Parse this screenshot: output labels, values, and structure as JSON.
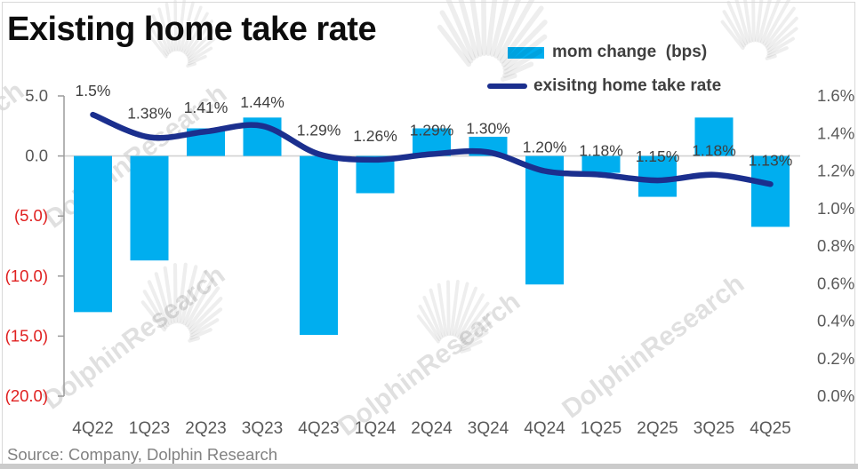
{
  "title": "Existing home take rate",
  "legend": {
    "bar": {
      "label": "mom change  (bps)",
      "color": "#00aeef"
    },
    "line": {
      "label": "exisitng home take rate",
      "color": "#1b2f8e"
    }
  },
  "source": "Source: Company, Dolphin Research",
  "watermark": {
    "text": "DolphinResearch"
  },
  "colors": {
    "bar": "#00aeef",
    "line": "#1b2f8e",
    "axis_text": "#595959",
    "negative_text": "#e02020",
    "data_label": "#3f3f3f",
    "axis_line": "#9b9b9b",
    "zero_gridline": "#d2d2d2"
  },
  "chart_data": {
    "type": "bar",
    "subtype": "combo bar + smooth line, dual axis",
    "title": "Existing home take rate",
    "categories": [
      "4Q22",
      "1Q23",
      "2Q23",
      "3Q23",
      "4Q23",
      "1Q24",
      "2Q24",
      "3Q24",
      "4Q24",
      "1Q25",
      "2Q25",
      "3Q25",
      "4Q25"
    ],
    "series": [
      {
        "name": "mom change  (bps)",
        "type": "bar",
        "axis": "left",
        "color": "#00aeef",
        "values": [
          -13.0,
          -8.7,
          2.3,
          3.2,
          -14.9,
          -3.1,
          2.3,
          1.6,
          -10.7,
          -1.4,
          -3.4,
          3.2,
          -5.9
        ]
      },
      {
        "name": "exisitng home take rate",
        "type": "line",
        "axis": "right",
        "color": "#1b2f8e",
        "values": [
          1.5,
          1.38,
          1.41,
          1.44,
          1.29,
          1.26,
          1.29,
          1.3,
          1.2,
          1.18,
          1.15,
          1.18,
          1.13
        ],
        "labels": [
          "1.5%",
          "1.38%",
          "1.41%",
          "1.44%",
          "1.29%",
          "1.26%",
          "1.29%",
          "1.30%",
          "1.20%",
          "1.18%",
          "1.15%",
          "1.18%",
          "1.13%"
        ]
      }
    ],
    "left_axis": {
      "min": -20,
      "max": 5,
      "tick_values": [
        5,
        0,
        -5,
        -10,
        -15,
        -20
      ],
      "tick_labels": [
        "5.0",
        "0.0",
        "(5.0)",
        "(10.0)",
        "(15.0)",
        "(20.0)"
      ]
    },
    "right_axis": {
      "min": 0,
      "max": 1.6,
      "tick_values": [
        1.6,
        1.4,
        1.2,
        1.0,
        0.8,
        0.6,
        0.4,
        0.2,
        0.0
      ],
      "tick_labels": [
        "1.6%",
        "1.4%",
        "1.2%",
        "1.0%",
        "0.8%",
        "0.6%",
        "0.4%",
        "0.2%",
        "0.0%"
      ]
    },
    "grid": "zero-line-only",
    "legend_position": "top-right"
  }
}
